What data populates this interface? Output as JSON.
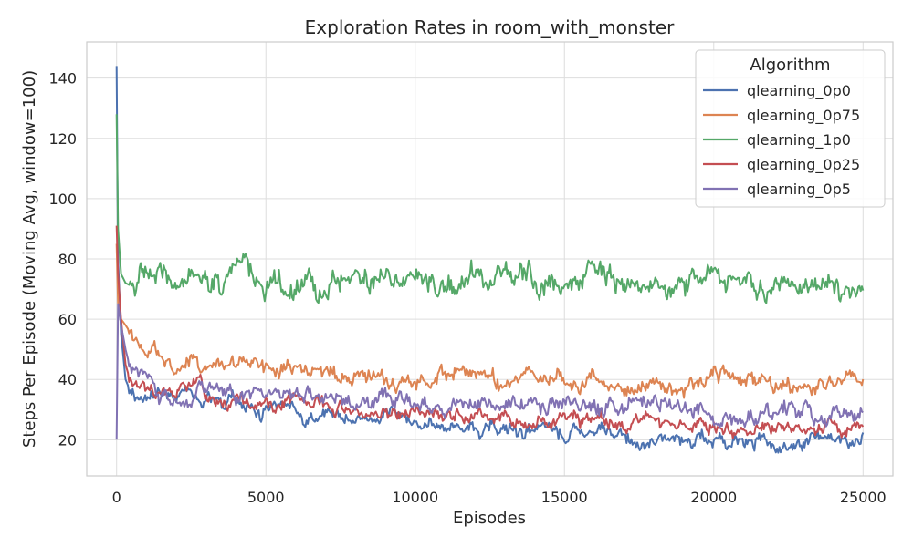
{
  "chart_data": {
    "type": "line",
    "title": "Exploration Rates in room_with_monster",
    "xlabel": "Episodes",
    "ylabel": "Steps Per Episode (Moving Avg, window=100)",
    "xlim": [
      -1000,
      26000
    ],
    "ylim": [
      8,
      152
    ],
    "xticks": [
      0,
      5000,
      10000,
      15000,
      20000,
      25000
    ],
    "yticks": [
      20,
      40,
      60,
      80,
      100,
      120,
      140
    ],
    "grid": true,
    "legend": {
      "title": "Algorithm",
      "placement": "top-right"
    },
    "series": [
      {
        "name": "qlearning_0p0",
        "color": "#4c72b0",
        "x": [
          0,
          50,
          150,
          300,
          500,
          1000,
          1500,
          2000,
          2500,
          3000,
          4000,
          5000,
          6000,
          7000,
          8000,
          9000,
          10000,
          11000,
          12000,
          13000,
          14000,
          15000,
          16000,
          17000,
          18000,
          19000,
          20000,
          21000,
          22000,
          23000,
          24000,
          25000
        ],
        "y": [
          144,
          80,
          55,
          40,
          35,
          34,
          36,
          35,
          37,
          36,
          33,
          31,
          29,
          28,
          27,
          27,
          26,
          25,
          24,
          23,
          22,
          22,
          21,
          21,
          21,
          20,
          20,
          20,
          19,
          19,
          19,
          20
        ]
      },
      {
        "name": "qlearning_0p75",
        "color": "#dd8452",
        "x": [
          0,
          50,
          150,
          300,
          500,
          1000,
          1500,
          2000,
          2500,
          3000,
          4000,
          5000,
          6000,
          7000,
          8000,
          9000,
          10000,
          11000,
          12000,
          13000,
          14000,
          15000,
          16000,
          17000,
          18000,
          19000,
          20000,
          21000,
          22000,
          23000,
          24000,
          25000
        ],
        "y": [
          85,
          65,
          60,
          58,
          55,
          50,
          48,
          46,
          45,
          44,
          43,
          43,
          43,
          42,
          42,
          41,
          41,
          41,
          40,
          40,
          40,
          40,
          39,
          39,
          39,
          39,
          39,
          39,
          38,
          38,
          38,
          40
        ]
      },
      {
        "name": "qlearning_1p0",
        "color": "#55a868",
        "x": [
          0,
          50,
          150,
          300,
          500,
          1000,
          1500,
          2000,
          2500,
          3000,
          4000,
          5000,
          6000,
          7000,
          8000,
          9000,
          10000,
          11000,
          12000,
          13000,
          14000,
          15000,
          16000,
          17000,
          18000,
          19000,
          20000,
          21000,
          22000,
          23000,
          24000,
          25000
        ],
        "y": [
          128,
          90,
          75,
          72,
          71,
          72,
          71,
          72,
          72,
          71,
          72,
          72,
          73,
          72,
          72,
          72,
          72,
          72,
          72,
          73,
          72,
          72,
          72,
          72,
          72,
          71,
          72,
          72,
          71,
          71,
          72,
          71
        ]
      },
      {
        "name": "qlearning_0p25",
        "color": "#c44e52",
        "x": [
          0,
          50,
          150,
          300,
          500,
          1000,
          1500,
          2000,
          2500,
          3000,
          4000,
          5000,
          6000,
          7000,
          8000,
          9000,
          10000,
          11000,
          12000,
          13000,
          14000,
          15000,
          16000,
          17000,
          18000,
          19000,
          20000,
          21000,
          22000,
          23000,
          24000,
          25000
        ],
        "y": [
          91,
          75,
          60,
          45,
          38,
          36,
          36,
          35,
          36,
          35,
          34,
          33,
          32,
          31,
          30,
          29,
          29,
          28,
          28,
          27,
          27,
          27,
          26,
          26,
          26,
          25,
          25,
          25,
          24,
          23,
          22,
          24
        ]
      },
      {
        "name": "qlearning_0p5",
        "color": "#8172b3",
        "x": [
          0,
          50,
          150,
          300,
          500,
          1000,
          1500,
          2000,
          2500,
          3000,
          4000,
          5000,
          6000,
          7000,
          8000,
          9000,
          10000,
          11000,
          12000,
          13000,
          14000,
          15000,
          16000,
          17000,
          18000,
          19000,
          20000,
          21000,
          22000,
          23000,
          24000,
          25000
        ],
        "y": [
          20,
          65,
          58,
          50,
          42,
          38,
          37,
          37,
          36,
          36,
          35,
          35,
          34,
          34,
          33,
          33,
          32,
          32,
          32,
          32,
          31,
          31,
          31,
          31,
          31,
          31,
          30,
          30,
          30,
          29,
          29,
          28
        ]
      }
    ]
  }
}
